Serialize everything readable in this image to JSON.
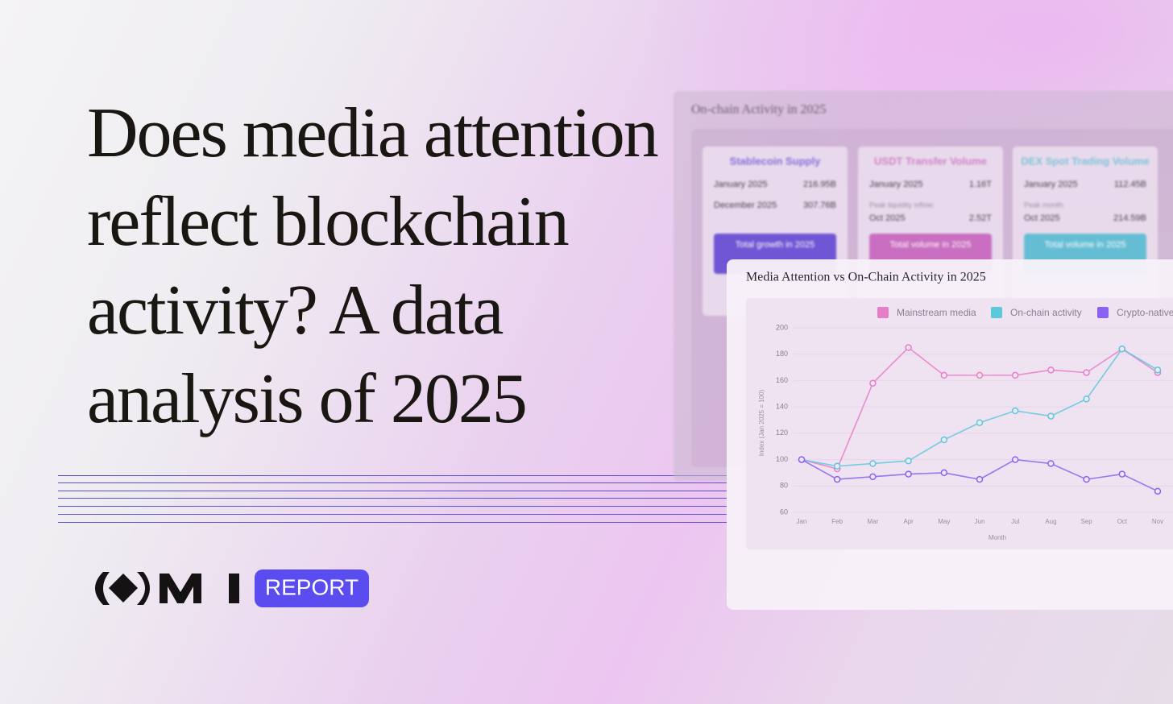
{
  "headline": "Does media attention reflect blockchain activity? A data analysis of 2025",
  "badge": "REPORT",
  "background_panel": {
    "title": "On-chain Activity in 2025",
    "cards": [
      {
        "title": "Stablecoin Supply",
        "color": "#5b3fd0",
        "rows": [
          {
            "label": "January 2025",
            "value": "216.95B"
          },
          {
            "label": "December 2025",
            "value": "307.76B"
          }
        ],
        "button": "Total growth in 2025"
      },
      {
        "title": "USDT Transfer Volume",
        "color": "#c45cb8",
        "rows": [
          {
            "label": "January 2025",
            "value": "1.16T"
          },
          {
            "note": "Peak liquidity inflow:"
          },
          {
            "label": "Oct 2025",
            "value": "2.52T"
          }
        ],
        "button": "Total volume in 2025"
      },
      {
        "title": "DEX Spot Trading Volume",
        "color": "#4fb8d0",
        "rows": [
          {
            "label": "January 2025",
            "value": "112.45B"
          },
          {
            "note": "Peak month:"
          },
          {
            "label": "Oct 2025",
            "value": "214.59B"
          }
        ],
        "button": "Total volume in 2025"
      }
    ]
  },
  "chart_data": {
    "type": "line",
    "title": "Media Attention vs On-Chain Activity in 2025",
    "categories": [
      "Jan",
      "Feb",
      "Mar",
      "Apr",
      "May",
      "Jun",
      "Jul",
      "Aug",
      "Sep",
      "Oct",
      "Nov"
    ],
    "series": [
      {
        "name": "Mainstream media",
        "color": "#e77cc8",
        "values": [
          100,
          93,
          158,
          185,
          164,
          164,
          164,
          168,
          166,
          184,
          166
        ]
      },
      {
        "name": "On-chain activity",
        "color": "#5cc9da",
        "values": [
          100,
          95,
          97,
          99,
          115,
          128,
          137,
          133,
          146,
          184,
          168
        ]
      },
      {
        "name": "Crypto-native",
        "color": "#8b62f2",
        "values": [
          100,
          85,
          87,
          89,
          90,
          85,
          100,
          97,
          85,
          89,
          76
        ]
      }
    ],
    "ylim": [
      60,
      200
    ],
    "yticks": [
      60,
      80,
      100,
      120,
      140,
      160,
      180,
      200
    ],
    "ylabel": "Index (Jan 2025 = 100)",
    "xlabel": "Month",
    "grid": true
  }
}
